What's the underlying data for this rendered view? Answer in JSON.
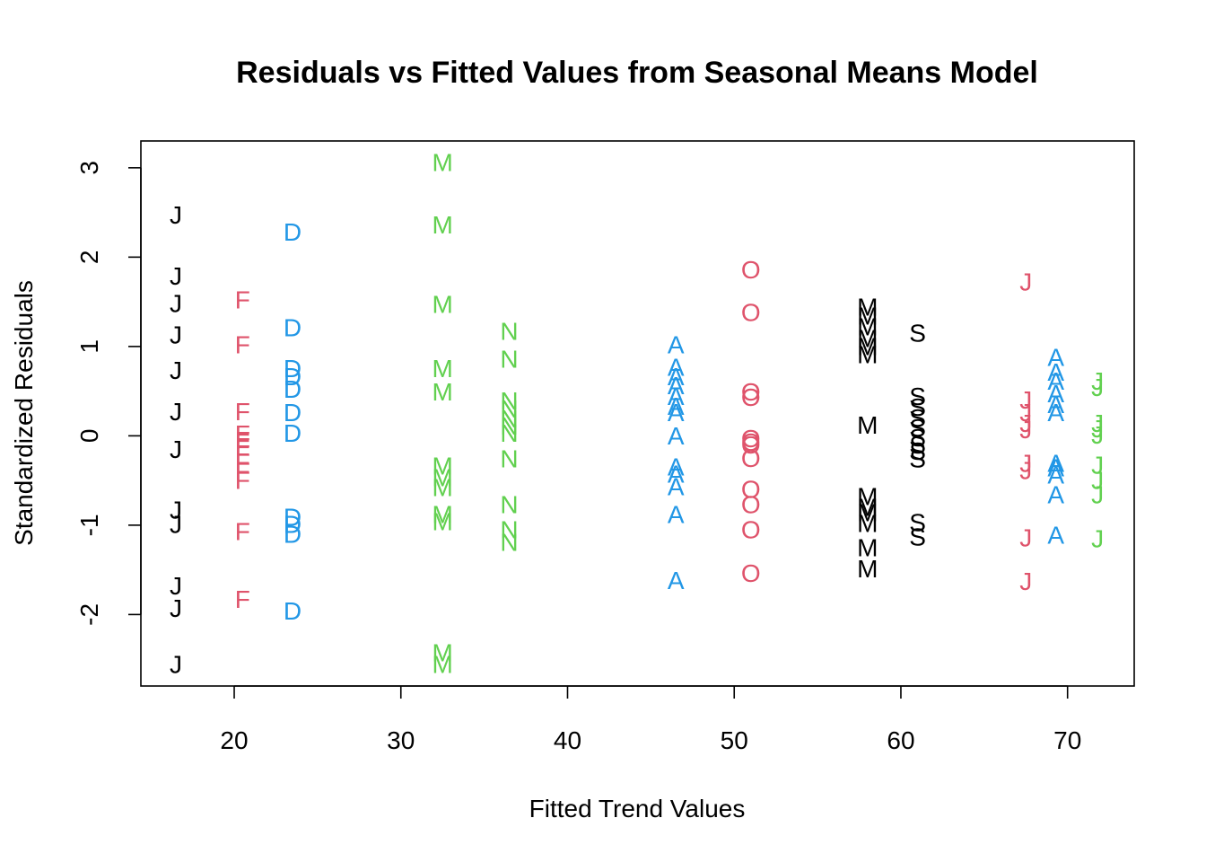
{
  "chart_data": {
    "type": "scatter",
    "title": "Residuals vs Fitted Values from Seasonal Means Model",
    "xlabel": "Fitted Trend Values",
    "ylabel": "Standardized Residuals",
    "xlim": [
      14.4,
      74.0
    ],
    "ylim": [
      -2.8,
      3.3
    ],
    "xticks": [
      20,
      30,
      40,
      50,
      60,
      70
    ],
    "yticks": [
      -2,
      -1,
      0,
      1,
      2,
      3
    ],
    "grid": false,
    "marker_colors": {
      "black": "#000000",
      "red": "#DF536B",
      "green": "#61D04F",
      "blue": "#2297E6"
    },
    "series": [
      {
        "label": "J",
        "color": "black",
        "x": 16.5,
        "y": [
          2.47,
          1.79,
          1.48,
          1.13,
          0.73,
          0.27,
          -0.15,
          -0.83,
          -0.99,
          -1.68,
          -1.93,
          -2.56
        ]
      },
      {
        "label": "F",
        "color": "red",
        "x": 20.5,
        "y": [
          1.52,
          1.02,
          0.27,
          0.02,
          -0.05,
          -0.12,
          -0.2,
          -0.3,
          -0.4,
          -0.5,
          -1.07,
          -1.83
        ]
      },
      {
        "label": "D",
        "color": "blue",
        "x": 23.5,
        "y": [
          2.28,
          1.21,
          0.75,
          0.66,
          0.52,
          0.26,
          0.03,
          -0.91,
          -0.99,
          -1.1,
          -1.96
        ]
      },
      {
        "label": "M",
        "color": "green",
        "x": 32.5,
        "y": [
          3.06,
          2.36,
          1.47,
          0.75,
          0.49,
          -0.34,
          -0.47,
          -0.58,
          -0.88,
          -0.96,
          -2.43,
          -2.56
        ]
      },
      {
        "label": "N",
        "color": "green",
        "x": 36.5,
        "y": [
          1.17,
          0.86,
          0.39,
          0.3,
          0.19,
          0.11,
          0.03,
          -0.26,
          -0.77,
          -1.05,
          -1.19
        ]
      },
      {
        "label": "A",
        "color": "blue",
        "x": 46.5,
        "y": [
          1.02,
          0.77,
          0.66,
          0.56,
          0.44,
          0.33,
          0.26,
          0.0,
          -0.35,
          -0.43,
          -0.57,
          -0.88,
          -1.62
        ]
      },
      {
        "label": "O",
        "color": "red",
        "x": 51.0,
        "y": [
          1.86,
          1.38,
          0.49,
          0.43,
          -0.03,
          -0.07,
          -0.1,
          -0.25,
          -0.6,
          -0.77,
          -1.05,
          -1.54
        ]
      },
      {
        "label": "M",
        "color": "black",
        "x": 58.0,
        "y": [
          1.44,
          1.34,
          1.22,
          1.09,
          1.0,
          0.91,
          0.12,
          -0.68,
          -0.8,
          -0.86,
          -0.98,
          -1.25,
          -1.49
        ]
      },
      {
        "label": "S",
        "color": "black",
        "x": 61.0,
        "y": [
          1.15,
          0.44,
          0.32,
          0.2,
          0.09,
          -0.02,
          -0.1,
          -0.17,
          -0.26,
          -0.97,
          -1.13
        ]
      },
      {
        "label": "J",
        "color": "red",
        "x": 67.5,
        "y": [
          1.72,
          0.4,
          0.26,
          0.14,
          0.07,
          -0.31,
          -0.39,
          -1.14,
          -1.63
        ]
      },
      {
        "label": "A",
        "color": "blue",
        "x": 69.3,
        "y": [
          0.88,
          0.71,
          0.61,
          0.47,
          0.35,
          0.26,
          -0.31,
          -0.36,
          -0.44,
          -0.66,
          -1.11
        ]
      },
      {
        "label": "J",
        "color": "green",
        "x": 71.8,
        "y": [
          0.61,
          0.54,
          0.14,
          0.08,
          0.01,
          -0.33,
          -0.5,
          -0.66,
          -1.15
        ]
      }
    ]
  }
}
